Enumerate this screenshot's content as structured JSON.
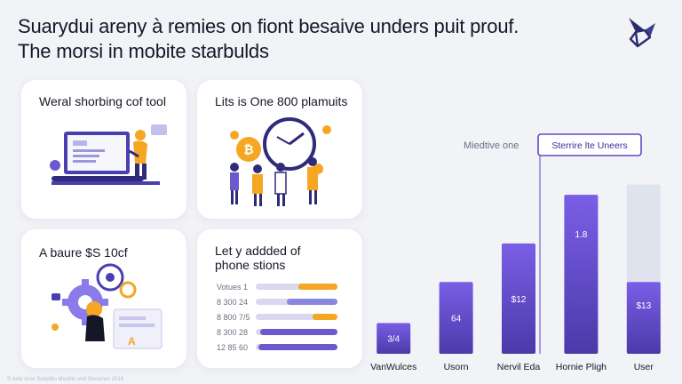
{
  "header": {
    "title_line1": "Suarydui areny à remies on fiont besaive unders puit prouf.",
    "title_line2": "The morsi in mobite starbulds"
  },
  "logo": {
    "icon": "origami-bird-logo-icon"
  },
  "cards": {
    "card1": {
      "title": "Weral shorbing cof tool",
      "icon": "laptop-user-illustration-icon"
    },
    "card2": {
      "title": "Lits is One 800 plamuits",
      "icon": "bitcoin-clock-people-illustration-icon"
    },
    "card3": {
      "title": "A baure $S 10cf",
      "icon": "gear-person-illustration-icon"
    },
    "card4": {
      "title_line1": "Let y addded of",
      "title_line2": "phone stions",
      "rows": [
        {
          "label": "Votues 1",
          "value": 0.48,
          "color": "#f5a623",
          "track": "#d9d8ee"
        },
        {
          "label": "8 300 24",
          "value": 0.62,
          "color": "#8b86dd",
          "track": "#d9d8ee"
        },
        {
          "label": "8 800 7/5",
          "value": 0.3,
          "color": "#f5a623",
          "track": "#d9d8ee"
        },
        {
          "label": "8 300 28",
          "value": 0.95,
          "color": "#6a5acd",
          "track": "#d9d8ee"
        },
        {
          "label": "12 85 60",
          "value": 0.97,
          "color": "#6a5acd",
          "track": "#d9d8ee"
        }
      ]
    }
  },
  "chart_data": {
    "type": "bar",
    "categories": [
      "VanWulces",
      "Usorn",
      "Nervil Eda",
      "Hornie Pligh",
      "User"
    ],
    "values": [
      12,
      28,
      43,
      62,
      28
    ],
    "value_labels": [
      "3/4",
      "64",
      "$12",
      "1.8",
      "$13"
    ],
    "background_values": [
      null,
      null,
      null,
      null,
      66
    ],
    "annotation": "Miedtive one",
    "highlight_label": "Sterrire lte Uneers",
    "ylim": [
      0,
      70
    ],
    "grid": false,
    "colors": {
      "bar_top": "#7a5ee6",
      "bar_bottom": "#4b3aa9",
      "background": "#dfe3ee",
      "label": "#ffffff",
      "highlight_border": "#5b4bc4",
      "highlight_text": "#3b2e9a"
    }
  },
  "footer": {
    "text": "© Anie Ame Subelllin Mouttin und Geneines 2018"
  },
  "colors": {
    "accent": "#5b4bc4",
    "orange": "#f5a623",
    "background": "#f1f3f7"
  }
}
